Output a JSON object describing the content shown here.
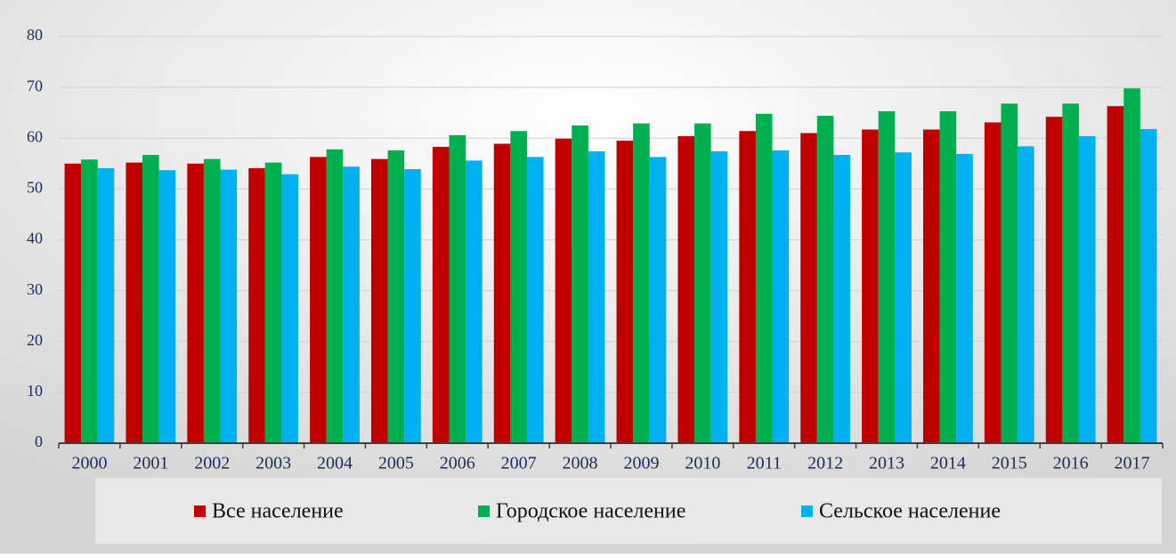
{
  "chart_data": {
    "type": "bar",
    "categories": [
      "2000",
      "2001",
      "2002",
      "2003",
      "2004",
      "2005",
      "2006",
      "2007",
      "2008",
      "2009",
      "2010",
      "2011",
      "2012",
      "2013",
      "2014",
      "2015",
      "2016",
      "2017"
    ],
    "series": [
      {
        "name": "Все население",
        "color": "#c00000",
        "values": [
          55.0,
          55.2,
          55.0,
          54.1,
          56.3,
          55.9,
          58.3,
          58.9,
          59.9,
          59.5,
          60.4,
          61.4,
          61.0,
          61.7,
          61.7,
          63.1,
          64.2,
          66.3
        ]
      },
      {
        "name": "Городское население",
        "color": "#00b050",
        "values": [
          55.8,
          56.7,
          55.9,
          55.2,
          57.8,
          57.6,
          60.6,
          61.4,
          62.5,
          62.9,
          62.9,
          64.8,
          64.4,
          65.3,
          65.3,
          66.8,
          66.8,
          69.8
        ]
      },
      {
        "name": "Сельское население",
        "color": "#00b0f0",
        "values": [
          54.1,
          53.7,
          53.8,
          52.9,
          54.4,
          53.9,
          55.6,
          56.3,
          57.4,
          56.3,
          57.4,
          57.6,
          56.7,
          57.2,
          56.9,
          58.4,
          60.4,
          61.8
        ]
      }
    ],
    "ylim": [
      0,
      80
    ],
    "yticks": [
      0,
      10,
      20,
      30,
      40,
      50,
      60,
      70,
      80
    ],
    "grid": true,
    "legend": "bottom"
  }
}
